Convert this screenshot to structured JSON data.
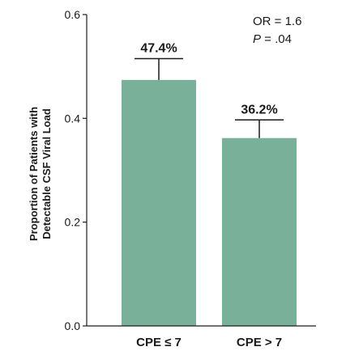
{
  "chart_data": {
    "type": "bar",
    "categories": [
      "CPE ≤ 7",
      "CPE > 7"
    ],
    "values": [
      0.474,
      0.362
    ],
    "error_upper": [
      0.515,
      0.397
    ],
    "data_labels": [
      "47.4%",
      "36.2%"
    ],
    "ylabel_lines": [
      "Proportion of Patients with",
      "Detectable CSF Viral Load"
    ],
    "ylim": [
      0.0,
      0.6
    ],
    "yticks": [
      0.0,
      0.2,
      0.4,
      0.6
    ],
    "ytick_labels": [
      "0.0",
      "0.2",
      "0.4",
      "0.6"
    ],
    "annotations": {
      "or_text": "OR = 1.6",
      "p_symbol": "P",
      "p_value": " = .04"
    },
    "bar_color": "#78b09a",
    "axis_color": "#1a1a1a",
    "grid": false,
    "legend": "none"
  }
}
